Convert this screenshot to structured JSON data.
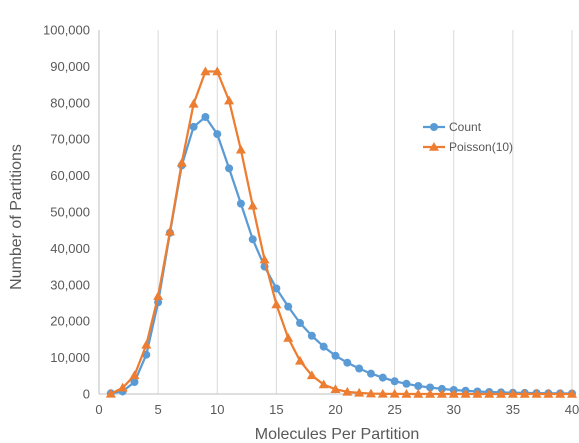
{
  "chart_data": {
    "type": "line",
    "xlabel": "Molecules Per Partition",
    "ylabel": "Number of Partitions",
    "xlim": [
      0,
      40
    ],
    "ylim": [
      0,
      100000
    ],
    "x_ticks": [
      0,
      5,
      10,
      15,
      20,
      25,
      30,
      35,
      40
    ],
    "y_ticks": [
      0,
      10000,
      20000,
      30000,
      40000,
      50000,
      60000,
      70000,
      80000,
      90000,
      100000
    ],
    "y_tick_labels": [
      "0",
      "10,000",
      "20,000",
      "30,000",
      "40,000",
      "50,000",
      "60,000",
      "70,000",
      "80,000",
      "90,000",
      "100,000"
    ],
    "grid": "vertical",
    "legend": "right",
    "series": [
      {
        "name": "Count",
        "color": "#5B9BD5",
        "marker": "circle",
        "x": [
          1,
          2,
          3,
          4,
          5,
          6,
          7,
          8,
          9,
          10,
          11,
          12,
          13,
          14,
          15,
          16,
          17,
          18,
          19,
          20,
          21,
          22,
          23,
          24,
          25,
          26,
          27,
          28,
          29,
          30,
          31,
          32,
          33,
          34,
          35,
          36,
          37,
          38,
          39,
          40
        ],
        "values": [
          200,
          700,
          3300,
          10800,
          25200,
          44300,
          62800,
          73400,
          76100,
          71400,
          62000,
          52300,
          42500,
          35000,
          29000,
          24000,
          19500,
          16000,
          13000,
          10500,
          8600,
          7000,
          5600,
          4500,
          3500,
          2800,
          2200,
          1800,
          1400,
          1100,
          900,
          700,
          550,
          450,
          350,
          300,
          250,
          200,
          180,
          150
        ]
      },
      {
        "name": "Poisson(10)",
        "color": "#ED7D31",
        "marker": "triangle",
        "x": [
          1,
          2,
          3,
          4,
          5,
          6,
          7,
          8,
          9,
          10,
          11,
          12,
          13,
          14,
          15,
          16,
          17,
          18,
          19,
          20,
          21,
          22,
          23,
          24,
          25,
          26,
          27,
          28,
          29,
          30,
          31,
          32,
          33,
          34,
          35,
          36,
          37,
          38,
          39,
          40
        ],
        "values": [
          50,
          1700,
          5100,
          13500,
          26900,
          44600,
          63500,
          79700,
          88600,
          88600,
          80600,
          67100,
          51700,
          36900,
          24600,
          15400,
          9100,
          5100,
          2600,
          1300,
          600,
          300,
          100,
          50,
          20,
          10,
          0,
          0,
          0,
          0,
          0,
          0,
          0,
          0,
          0,
          0,
          0,
          0,
          0,
          0
        ]
      }
    ]
  }
}
